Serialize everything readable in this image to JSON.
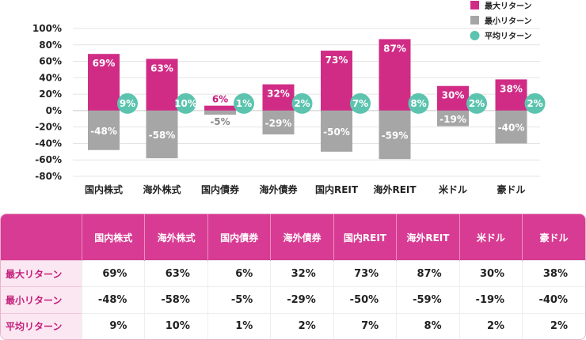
{
  "chart_data": {
    "type": "bar",
    "categories": [
      "国内株式",
      "海外株式",
      "国内債券",
      "海外債券",
      "国内REIT",
      "海外REIT",
      "米ドル",
      "豪ドル"
    ],
    "series": [
      {
        "name": "最大リターン",
        "values": [
          69,
          63,
          6,
          32,
          73,
          87,
          30,
          38
        ],
        "color": "#d02c86"
      },
      {
        "name": "最小リターン",
        "values": [
          -48,
          -58,
          -5,
          -29,
          -50,
          -59,
          -19,
          -40
        ],
        "color": "#a6a6a6"
      },
      {
        "name": "平均リターン",
        "values": [
          9,
          10,
          1,
          2,
          7,
          8,
          2,
          2
        ],
        "color": "#5cc4ae"
      }
    ],
    "ylim": [
      -80,
      100
    ],
    "yticks": [
      "100%",
      "80%",
      "60%",
      "40%",
      "20%",
      "0%",
      "-20%",
      "-40%",
      "-60%",
      "-80%"
    ],
    "grid": true,
    "legend": "top-right"
  },
  "table": {
    "headers": [
      "国内株式",
      "海外株式",
      "国内債券",
      "海外債券",
      "国内REIT",
      "海外REIT",
      "米ドル",
      "豪ドル"
    ],
    "rows": [
      {
        "label": "最大リターン",
        "cells": [
          "69%",
          "63%",
          "6%",
          "32%",
          "73%",
          "87%",
          "30%",
          "38%"
        ]
      },
      {
        "label": "最小リターン",
        "cells": [
          "-48%",
          "-58%",
          "-5%",
          "-29%",
          "-50%",
          "-59%",
          "-19%",
          "-40%"
        ]
      },
      {
        "label": "平均リターン",
        "cells": [
          "9%",
          "10%",
          "1%",
          "2%",
          "7%",
          "8%",
          "2%",
          "2%"
        ]
      }
    ]
  }
}
